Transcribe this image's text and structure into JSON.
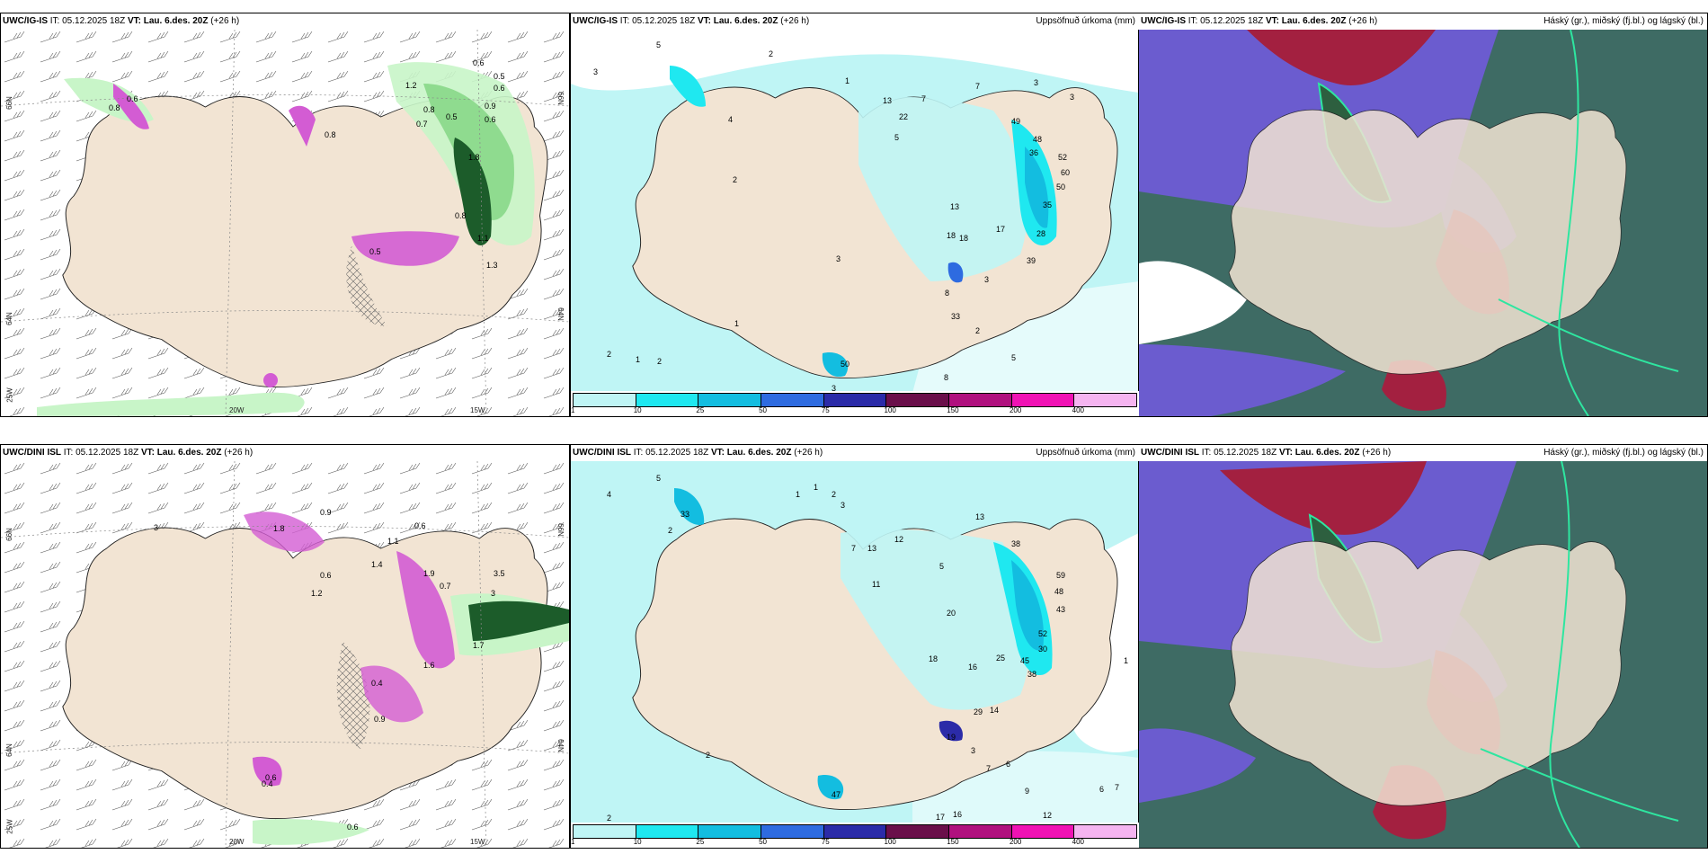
{
  "palette": {
    "land": "#f2e4d3",
    "sea": "#ffffff",
    "precip_light": "#c8f5c8",
    "precip_mid": "#8fdb8f",
    "precip_dark": "#1c5c2a",
    "snow_pink": "#d35cd3",
    "accum_levels": [
      "#bff5f5",
      "#1fe8f0",
      "#13bde0",
      "#2e6be0",
      "#2b2ba8",
      "#6a0f4a",
      "#b0107e",
      "#f012b4",
      "#f5b4f0"
    ],
    "cloud_high": "#2d5f3f",
    "cloud_mid": "#6b5ccf",
    "cloud_low": "#a32040",
    "cloud_base": "#3e6b64"
  },
  "colorbar_ticks": [
    "1",
    "10",
    "25",
    "50",
    "75",
    "100",
    "150",
    "200",
    "400"
  ],
  "panels": [
    {
      "id": "top-left",
      "model": "UWC/IG-IS",
      "it_text": "IT: 05.12.2025 18Z",
      "vt_label": "VT:",
      "vt_value": "Lau. 6.des. 20Z",
      "lead": "(+26 h)",
      "right_title": "",
      "axis": {
        "lat1": "66N",
        "lat2": "64N",
        "lat3": "25W",
        "lon1": "20W",
        "lon2": "15W",
        "lat1r": "66N",
        "lat2r": "64N"
      },
      "labels": [
        "0.6",
        "0.5",
        "0.6",
        "1.2",
        "0.8",
        "0.9",
        "0.6",
        "0.7",
        "0.5",
        "1.8",
        "0.8",
        "1.1",
        "0.8",
        "0.6",
        "1.3",
        "0.8",
        "0.5"
      ]
    },
    {
      "id": "top-middle",
      "model": "UWC/IG-IS",
      "it_text": "IT: 05.12.2025 18Z",
      "vt_label": "VT:",
      "vt_value": "Lau. 6.des. 20Z",
      "lead": "(+26 h)",
      "right_title": "Uppsöfnuð úrkoma (mm)",
      "labels": [
        "3",
        "5",
        "2",
        "1",
        "13",
        "22",
        "7",
        "7",
        "3",
        "3",
        "49",
        "48",
        "36",
        "52",
        "60",
        "50",
        "35",
        "28",
        "39",
        "18",
        "18",
        "13",
        "17",
        "33",
        "8",
        "8",
        "3",
        "5",
        "2",
        "1",
        "2",
        "1",
        "2",
        "3",
        "50",
        "3",
        "4",
        "2",
        "5"
      ]
    },
    {
      "id": "top-right",
      "model": "UWC/IG-IS",
      "it_text": "IT: 05.12.2025 18Z",
      "vt_label": "VT:",
      "vt_value": "Lau. 6.des. 20Z",
      "lead": "(+26 h)",
      "right_title": "Háský (gr.), miðský (fj.bl.) og lágský (bl.)"
    },
    {
      "id": "bottom-left",
      "model": "UWC/DINI ISL",
      "it_text": "IT: 05.12.2025 18Z",
      "vt_label": "VT:",
      "vt_value": "Lau. 6.des. 20Z",
      "lead": "(+26 h)",
      "right_title": "",
      "axis": {
        "lat1": "66N",
        "lat2": "64N",
        "lat3": "25W",
        "lon1": "20W",
        "lon2": "15W",
        "lat1r": "66N",
        "lat2r": "64N"
      },
      "labels": [
        "1.8",
        "0.9",
        "3",
        "1.1",
        "1.4",
        "1.9",
        "0.6",
        "3",
        "3.5",
        "0.7",
        "1.6",
        "0.6",
        "1.2",
        "0.4",
        "0.9",
        "1.7",
        "0.6",
        "0.4",
        "0.6"
      ]
    },
    {
      "id": "bottom-middle",
      "model": "UWC/DINI ISL",
      "it_text": "IT: 05.12.2025 18Z",
      "vt_label": "VT:",
      "vt_value": "Lau. 6.des. 20Z",
      "lead": "(+26 h)",
      "right_title": "Uppsöfnuð úrkoma (mm)",
      "labels": [
        "4",
        "5",
        "1",
        "1",
        "2",
        "3",
        "2",
        "33",
        "7",
        "13",
        "11",
        "12",
        "5",
        "13",
        "38",
        "59",
        "48",
        "43",
        "52",
        "30",
        "20",
        "18",
        "16",
        "25",
        "45",
        "38",
        "29",
        "14",
        "19",
        "3",
        "7",
        "6",
        "9",
        "12",
        "17",
        "16",
        "2",
        "2",
        "47",
        "1",
        "7",
        "6"
      ]
    },
    {
      "id": "bottom-right",
      "model": "UWC/DINI ISL",
      "it_text": "IT: 05.12.2025 18Z",
      "vt_label": "VT:",
      "vt_value": "Lau. 6.des. 20Z",
      "lead": "(+26 h)",
      "right_title": "Háský (gr.), miðský (fj.bl.) og lágský (bl.)"
    }
  ]
}
